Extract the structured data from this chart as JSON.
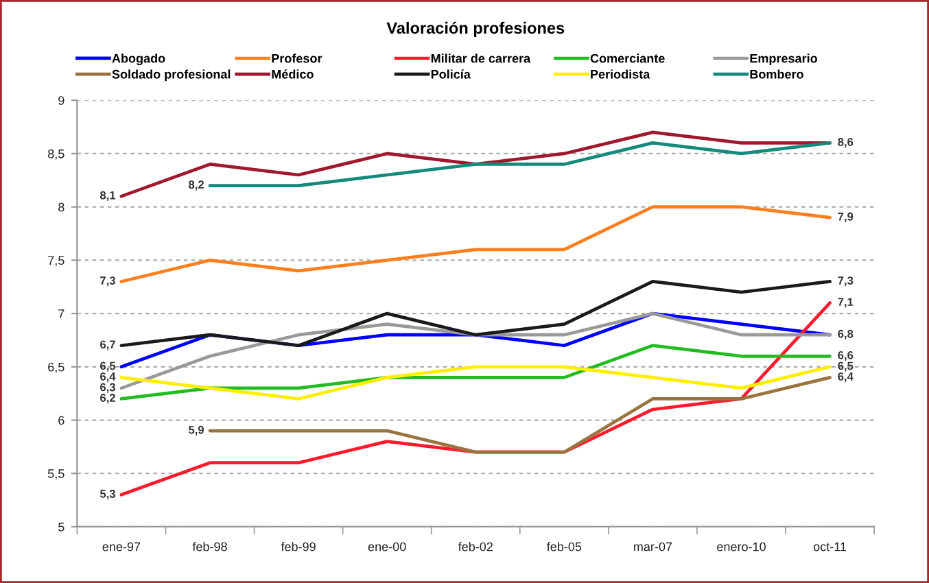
{
  "chart_data": {
    "type": "line",
    "title": "Valoración profesiones",
    "categories": [
      "ene-97",
      "feb-98",
      "feb-99",
      "ene-00",
      "feb-02",
      "feb-05",
      "mar-07",
      "enero-10",
      "oct-11"
    ],
    "ylim": [
      5,
      9
    ],
    "yticks": [
      5,
      {
        "value": 5.5,
        "label": "5,5"
      },
      6,
      {
        "value": 6.5,
        "label": "6,5"
      },
      7,
      {
        "value": 7.5,
        "label": "7,5"
      },
      8,
      {
        "value": 8.5,
        "label": "8,5"
      },
      9
    ],
    "grid": "y",
    "legend": "top",
    "line_style": "solid",
    "series": [
      {
        "name": "Abogado",
        "color": "#0000ff",
        "values": [
          6.5,
          6.8,
          6.7,
          6.8,
          6.8,
          6.7,
          7.0,
          6.9,
          6.8
        ],
        "value_labels": [
          "6,5",
          null,
          null,
          null,
          null,
          null,
          null,
          null,
          "6,8"
        ]
      },
      {
        "name": "Profesor",
        "color": "#ff7f1e",
        "values": [
          7.3,
          7.5,
          7.4,
          7.5,
          7.6,
          7.6,
          8.0,
          8.0,
          7.9
        ],
        "value_labels": [
          "7,3",
          null,
          null,
          null,
          null,
          null,
          null,
          null,
          "7,9"
        ]
      },
      {
        "name": "Militar de carrera",
        "color": "#ff1a2e",
        "values": [
          5.3,
          5.6,
          5.6,
          5.8,
          5.7,
          5.7,
          6.1,
          6.2,
          7.1
        ],
        "value_labels": [
          "5,3",
          null,
          null,
          null,
          null,
          null,
          null,
          null,
          "7,1"
        ]
      },
      {
        "name": "Comerciante",
        "color": "#22bb22",
        "values": [
          6.2,
          6.3,
          6.3,
          6.4,
          6.4,
          6.4,
          6.7,
          6.6,
          6.6
        ],
        "value_labels": [
          "6,2",
          null,
          null,
          null,
          null,
          null,
          null,
          null,
          "6,6"
        ]
      },
      {
        "name": "Empresario",
        "color": "#999999",
        "values": [
          6.3,
          6.6,
          6.8,
          6.9,
          6.8,
          6.8,
          7.0,
          6.8,
          6.8
        ],
        "value_labels": [
          "6,3",
          null,
          null,
          null,
          null,
          null,
          null,
          null,
          null
        ]
      },
      {
        "name": "Soldado profesional",
        "color": "#9a7440",
        "values": [
          null,
          5.9,
          5.9,
          5.9,
          5.7,
          5.7,
          6.2,
          6.2,
          6.4
        ],
        "value_labels": [
          null,
          "5,9",
          null,
          null,
          null,
          null,
          null,
          null,
          "6,4"
        ]
      },
      {
        "name": "Médico",
        "color": "#a0182e",
        "values": [
          8.1,
          8.4,
          8.3,
          8.5,
          8.4,
          8.5,
          8.7,
          8.6,
          8.6
        ],
        "value_labels": [
          "8,1",
          null,
          null,
          null,
          null,
          null,
          null,
          null,
          "8,6"
        ]
      },
      {
        "name": "Policía",
        "color": "#1a1a1a",
        "values": [
          6.7,
          6.8,
          6.7,
          7.0,
          6.8,
          6.9,
          7.3,
          7.2,
          7.3
        ],
        "value_labels": [
          "6,7",
          null,
          null,
          null,
          null,
          null,
          null,
          null,
          "7,3"
        ]
      },
      {
        "name": "Periodista",
        "color": "#ffee00",
        "values": [
          6.4,
          6.3,
          6.2,
          6.4,
          6.5,
          6.5,
          6.4,
          6.3,
          6.5
        ],
        "value_labels": [
          "6,4",
          null,
          null,
          null,
          null,
          null,
          null,
          null,
          "6,5"
        ]
      },
      {
        "name": "Bombero",
        "color": "#138a7a",
        "values": [
          null,
          8.2,
          8.2,
          8.3,
          8.4,
          8.4,
          8.6,
          8.5,
          8.6
        ],
        "value_labels": [
          null,
          "8,2",
          null,
          null,
          null,
          null,
          null,
          null,
          null
        ]
      }
    ]
  }
}
